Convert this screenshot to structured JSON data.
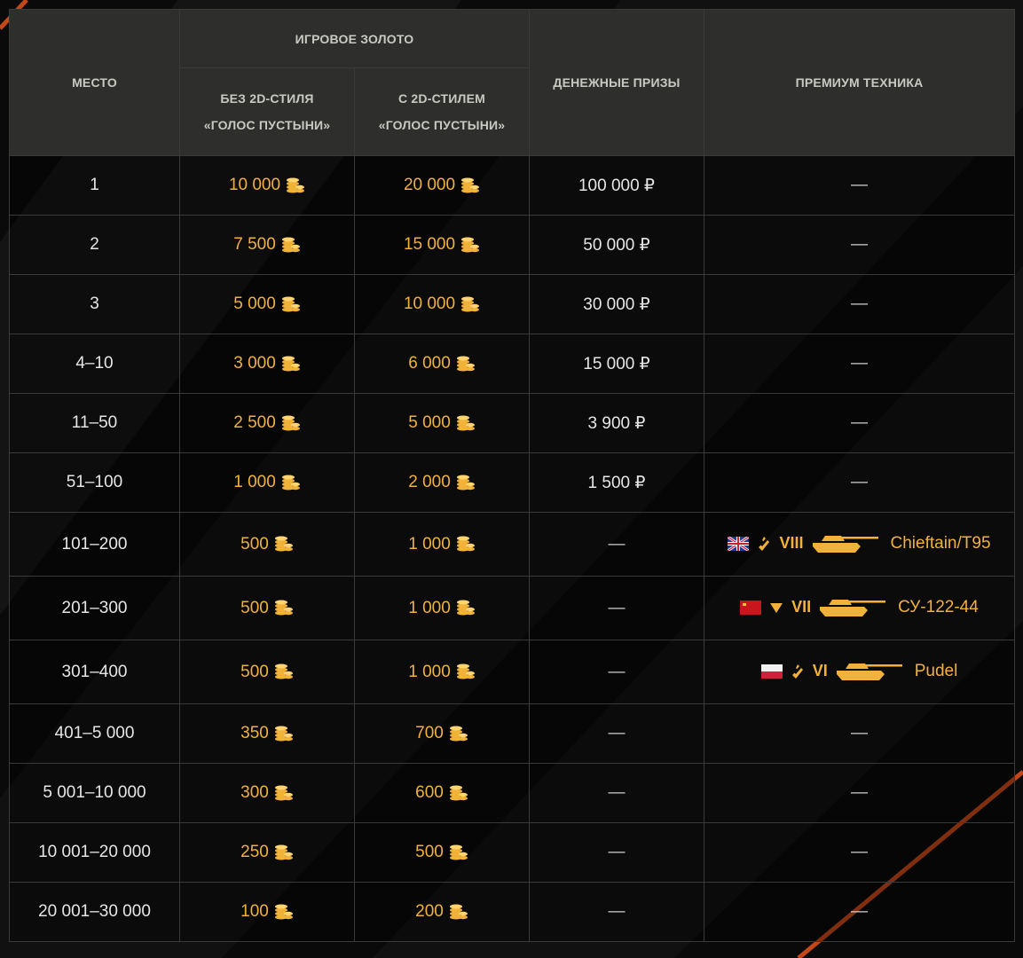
{
  "header": {
    "place": "МЕСТО",
    "game_gold": "ИГРОВОЕ ЗОЛОТО",
    "without_style_line1": "БЕЗ 2D-СТИЛЯ",
    "without_style_line2": "«ГОЛОС ПУСТЫНИ»",
    "with_style_line1": "С 2D-СТИЛЕМ",
    "with_style_line2": "«ГОЛОС ПУСТЫНИ»",
    "cash_prizes": "ДЕНЕЖНЫЕ ПРИЗЫ",
    "premium_vehicles": "ПРЕМИУМ ТЕХНИКА"
  },
  "colors": {
    "gold": "#f1b23a",
    "header_bg": "#2e2e2c",
    "accent_stripe": "#c4471a"
  },
  "rows": [
    {
      "place": "1",
      "gold_without": "10 000",
      "gold_with": "20 000",
      "cash": "100 000 ₽",
      "vehicle": "—"
    },
    {
      "place": "2",
      "gold_without": "7 500",
      "gold_with": "15 000",
      "cash": "50 000 ₽",
      "vehicle": "—"
    },
    {
      "place": "3",
      "gold_without": "5 000",
      "gold_with": "10 000",
      "cash": "30 000 ₽",
      "vehicle": "—"
    },
    {
      "place": "4–10",
      "gold_without": "3 000",
      "gold_with": "6 000",
      "cash": "15 000 ₽",
      "vehicle": "—"
    },
    {
      "place": "11–50",
      "gold_without": "2 500",
      "gold_with": "5 000",
      "cash": "3 900 ₽",
      "vehicle": "—"
    },
    {
      "place": "51–100",
      "gold_without": "1 000",
      "gold_with": "2 000",
      "cash": "1 500 ₽",
      "vehicle": "—"
    },
    {
      "place": "101–200",
      "gold_without": "500",
      "gold_with": "1 000",
      "cash": "—",
      "vehicle_obj": {
        "nation": "uk-flag",
        "class": "medium-tank-icon",
        "tier": "VIII",
        "name": "Chieftain/T95"
      }
    },
    {
      "place": "201–300",
      "gold_without": "500",
      "gold_with": "1 000",
      "cash": "—",
      "vehicle_obj": {
        "nation": "ussr-flag",
        "class": "td-icon",
        "tier": "VII",
        "name": "СУ-122-44"
      }
    },
    {
      "place": "301–400",
      "gold_without": "500",
      "gold_with": "1 000",
      "cash": "—",
      "vehicle_obj": {
        "nation": "poland-flag",
        "class": "medium-tank-icon",
        "tier": "VI",
        "name": "Pudel"
      }
    },
    {
      "place": "401–5 000",
      "gold_without": "350",
      "gold_with": "700",
      "cash": "—",
      "vehicle": "—"
    },
    {
      "place": "5 001–10 000",
      "gold_without": "300",
      "gold_with": "600",
      "cash": "—",
      "vehicle": "—"
    },
    {
      "place": "10 001–20 000",
      "gold_without": "250",
      "gold_with": "500",
      "cash": "—",
      "vehicle": "—"
    },
    {
      "place": "20 001–30 000",
      "gold_without": "100",
      "gold_with": "200",
      "cash": "—",
      "vehicle": "—"
    }
  ]
}
